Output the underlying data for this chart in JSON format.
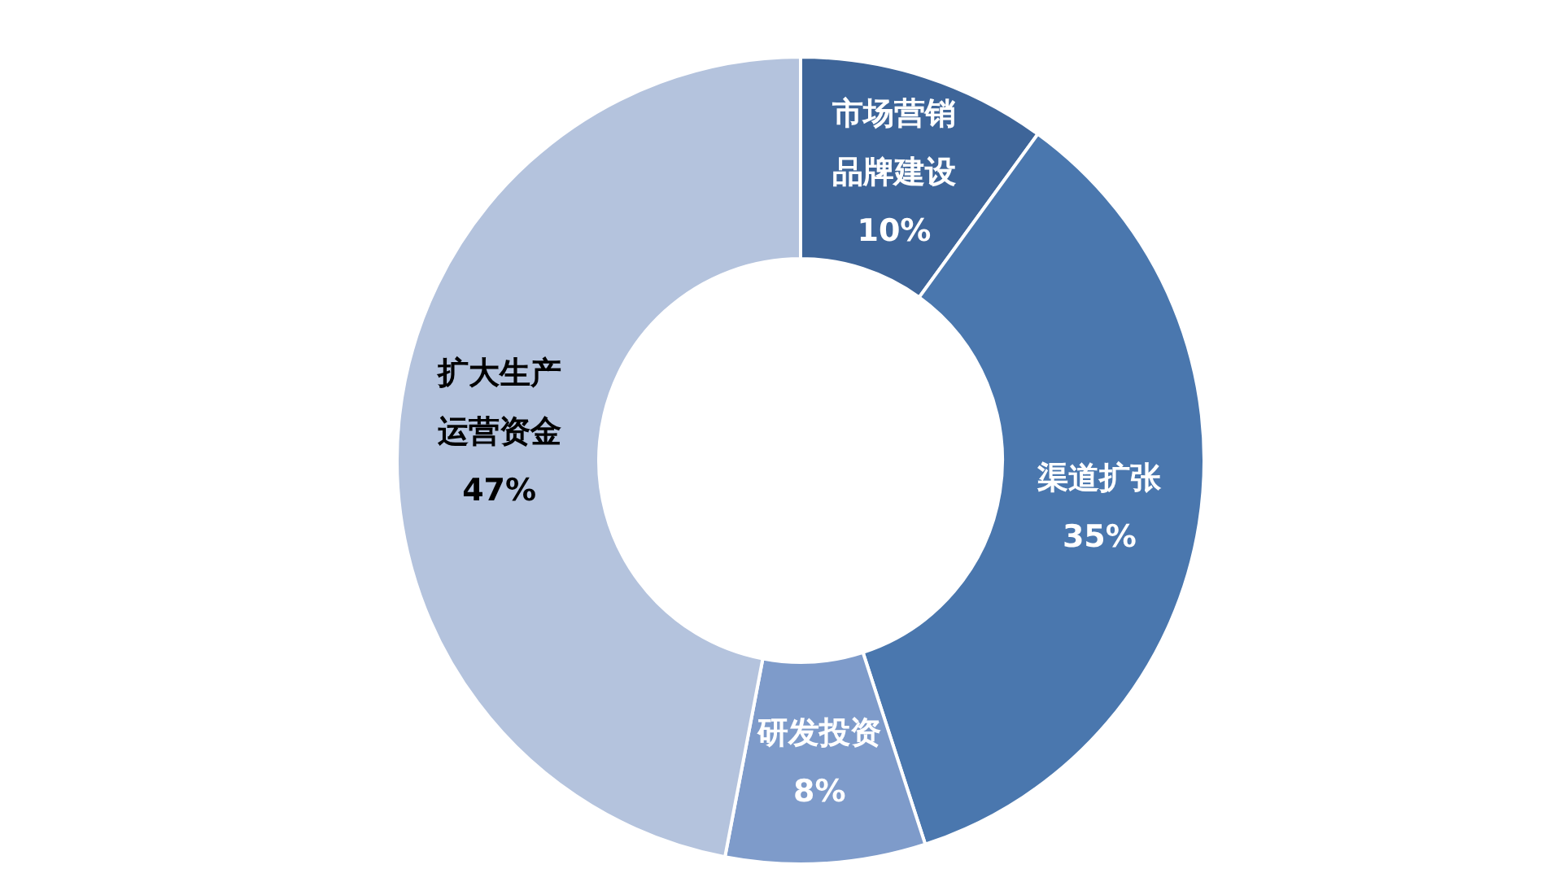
{
  "chart_data": {
    "type": "donut",
    "categories": [
      "市场营销品牌建设",
      "渠道扩张",
      "研发投资",
      "扩大生产运营资金"
    ],
    "values": [
      10,
      35,
      8,
      47
    ],
    "colors": [
      "#3e6599",
      "#4a77ae",
      "#7e9bca",
      "#b4c3dd"
    ],
    "value_labels": [
      "10%",
      "35%",
      "8%",
      "47%"
    ]
  }
}
